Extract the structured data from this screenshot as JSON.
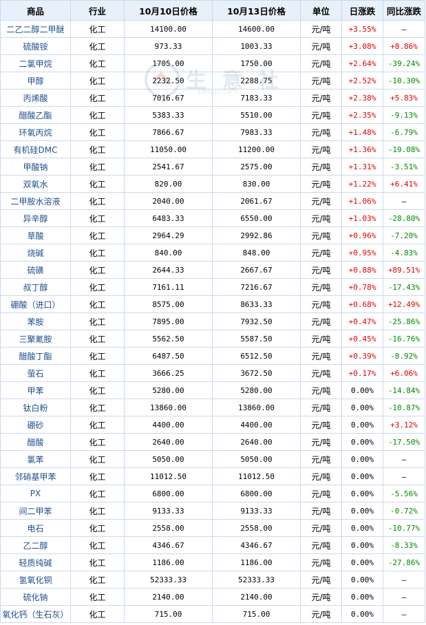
{
  "headers": [
    "商品",
    "行业",
    "10月10日价格",
    "10月13日价格",
    "单位",
    "日涨跌",
    "同比涨跌"
  ],
  "watermark": {
    "text": "生 意 社",
    "url": "100ppi.com"
  },
  "rows": [
    {
      "name": "二乙二醇二甲醚",
      "industry": "化工",
      "p1": "14100.00",
      "p2": "14600.00",
      "unit": "元/吨",
      "daily": "+3.55%",
      "yoy": "—"
    },
    {
      "name": "硫酸铵",
      "industry": "化工",
      "p1": "973.33",
      "p2": "1003.33",
      "unit": "元/吨",
      "daily": "+3.08%",
      "yoy": "+8.86%"
    },
    {
      "name": "二氯甲烷",
      "industry": "化工",
      "p1": "1705.00",
      "p2": "1750.00",
      "unit": "元/吨",
      "daily": "+2.64%",
      "yoy": "-39.24%"
    },
    {
      "name": "甲醇",
      "industry": "化工",
      "p1": "2232.50",
      "p2": "2288.75",
      "unit": "元/吨",
      "daily": "+2.52%",
      "yoy": "-10.30%"
    },
    {
      "name": "丙烯酸",
      "industry": "化工",
      "p1": "7016.67",
      "p2": "7183.33",
      "unit": "元/吨",
      "daily": "+2.38%",
      "yoy": "+5.83%"
    },
    {
      "name": "醋酸乙酯",
      "industry": "化工",
      "p1": "5383.33",
      "p2": "5510.00",
      "unit": "元/吨",
      "daily": "+2.35%",
      "yoy": "-9.13%"
    },
    {
      "name": "环氧丙烷",
      "industry": "化工",
      "p1": "7866.67",
      "p2": "7983.33",
      "unit": "元/吨",
      "daily": "+1.48%",
      "yoy": "-6.79%"
    },
    {
      "name": "有机硅DMC",
      "industry": "化工",
      "p1": "11050.00",
      "p2": "11200.00",
      "unit": "元/吨",
      "daily": "+1.36%",
      "yoy": "-19.08%"
    },
    {
      "name": "甲酸钠",
      "industry": "化工",
      "p1": "2541.67",
      "p2": "2575.00",
      "unit": "元/吨",
      "daily": "+1.31%",
      "yoy": "-3.51%"
    },
    {
      "name": "双氧水",
      "industry": "化工",
      "p1": "820.00",
      "p2": "830.00",
      "unit": "元/吨",
      "daily": "+1.22%",
      "yoy": "+6.41%"
    },
    {
      "name": "二甲胺水溶液",
      "industry": "化工",
      "p1": "2040.00",
      "p2": "2061.67",
      "unit": "元/吨",
      "daily": "+1.06%",
      "yoy": "—"
    },
    {
      "name": "异辛醇",
      "industry": "化工",
      "p1": "6483.33",
      "p2": "6550.00",
      "unit": "元/吨",
      "daily": "+1.03%",
      "yoy": "-28.80%"
    },
    {
      "name": "草酸",
      "industry": "化工",
      "p1": "2964.29",
      "p2": "2992.86",
      "unit": "元/吨",
      "daily": "+0.96%",
      "yoy": "-7.20%"
    },
    {
      "name": "烧碱",
      "industry": "化工",
      "p1": "840.00",
      "p2": "848.00",
      "unit": "元/吨",
      "daily": "+0.95%",
      "yoy": "-4.83%"
    },
    {
      "name": "硫磺",
      "industry": "化工",
      "p1": "2644.33",
      "p2": "2667.67",
      "unit": "元/吨",
      "daily": "+0.88%",
      "yoy": "+89.51%"
    },
    {
      "name": "叔丁醇",
      "industry": "化工",
      "p1": "7161.11",
      "p2": "7216.67",
      "unit": "元/吨",
      "daily": "+0.78%",
      "yoy": "-17.43%"
    },
    {
      "name": "硼酸（进口）",
      "industry": "化工",
      "p1": "8575.00",
      "p2": "8633.33",
      "unit": "元/吨",
      "daily": "+0.68%",
      "yoy": "+12.49%"
    },
    {
      "name": "苯胺",
      "industry": "化工",
      "p1": "7895.00",
      "p2": "7932.50",
      "unit": "元/吨",
      "daily": "+0.47%",
      "yoy": "-25.86%"
    },
    {
      "name": "三聚氰胺",
      "industry": "化工",
      "p1": "5562.50",
      "p2": "5587.50",
      "unit": "元/吨",
      "daily": "+0.45%",
      "yoy": "-16.76%"
    },
    {
      "name": "醋酸丁酯",
      "industry": "化工",
      "p1": "6487.50",
      "p2": "6512.50",
      "unit": "元/吨",
      "daily": "+0.39%",
      "yoy": "-8.92%"
    },
    {
      "name": "萤石",
      "industry": "化工",
      "p1": "3666.25",
      "p2": "3672.50",
      "unit": "元/吨",
      "daily": "+0.17%",
      "yoy": "+6.06%"
    },
    {
      "name": "甲苯",
      "industry": "化工",
      "p1": "5280.00",
      "p2": "5280.00",
      "unit": "元/吨",
      "daily": "0.00%",
      "yoy": "-14.84%"
    },
    {
      "name": "钛白粉",
      "industry": "化工",
      "p1": "13860.00",
      "p2": "13860.00",
      "unit": "元/吨",
      "daily": "0.00%",
      "yoy": "-10.87%"
    },
    {
      "name": "硼砂",
      "industry": "化工",
      "p1": "4400.00",
      "p2": "4400.00",
      "unit": "元/吨",
      "daily": "0.00%",
      "yoy": "+3.12%"
    },
    {
      "name": "醋酸",
      "industry": "化工",
      "p1": "2640.00",
      "p2": "2640.00",
      "unit": "元/吨",
      "daily": "0.00%",
      "yoy": "-17.50%"
    },
    {
      "name": "氯苯",
      "industry": "化工",
      "p1": "5050.00",
      "p2": "5050.00",
      "unit": "元/吨",
      "daily": "0.00%",
      "yoy": "—"
    },
    {
      "name": "邻硝基甲苯",
      "industry": "化工",
      "p1": "11012.50",
      "p2": "11012.50",
      "unit": "元/吨",
      "daily": "0.00%",
      "yoy": "—"
    },
    {
      "name": "PX",
      "industry": "化工",
      "p1": "6800.00",
      "p2": "6800.00",
      "unit": "元/吨",
      "daily": "0.00%",
      "yoy": "-5.56%"
    },
    {
      "name": "间二甲苯",
      "industry": "化工",
      "p1": "9133.33",
      "p2": "9133.33",
      "unit": "元/吨",
      "daily": "0.00%",
      "yoy": "-0.72%"
    },
    {
      "name": "电石",
      "industry": "化工",
      "p1": "2558.00",
      "p2": "2558.00",
      "unit": "元/吨",
      "daily": "0.00%",
      "yoy": "-10.77%"
    },
    {
      "name": "乙二醇",
      "industry": "化工",
      "p1": "4346.67",
      "p2": "4346.67",
      "unit": "元/吨",
      "daily": "0.00%",
      "yoy": "-8.33%"
    },
    {
      "name": "轻质纯碱",
      "industry": "化工",
      "p1": "1186.00",
      "p2": "1186.00",
      "unit": "元/吨",
      "daily": "0.00%",
      "yoy": "-27.86%"
    },
    {
      "name": "氢氧化铜",
      "industry": "化工",
      "p1": "52333.33",
      "p2": "52333.33",
      "unit": "元/吨",
      "daily": "0.00%",
      "yoy": "—"
    },
    {
      "name": "硫化钠",
      "industry": "化工",
      "p1": "2140.00",
      "p2": "2140.00",
      "unit": "元/吨",
      "daily": "0.00%",
      "yoy": "—"
    },
    {
      "name": "氧化钙（生石灰）",
      "industry": "化工",
      "p1": "715.00",
      "p2": "715.00",
      "unit": "元/吨",
      "daily": "0.00%",
      "yoy": "—"
    }
  ]
}
